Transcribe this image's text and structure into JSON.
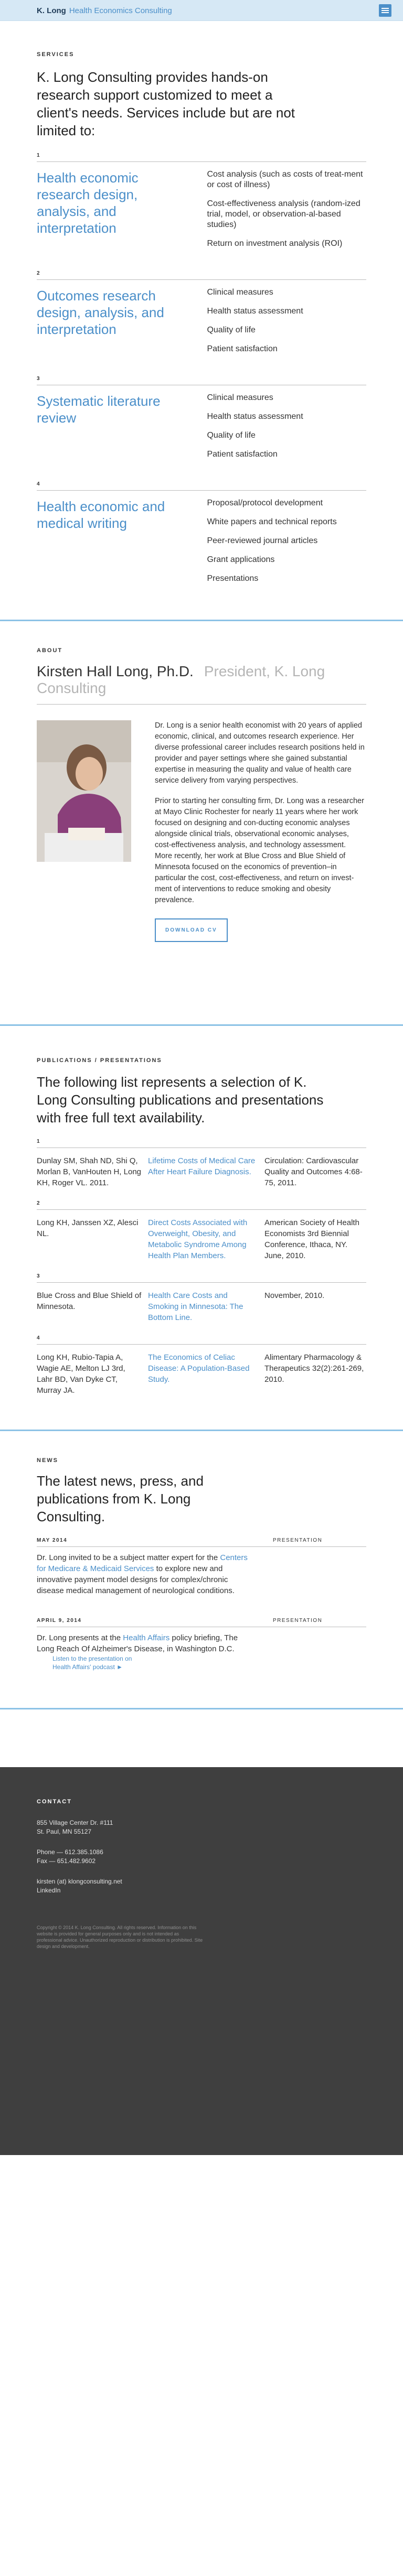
{
  "header": {
    "brand": "K. Long",
    "brand_sub": "Health Economics Consulting"
  },
  "services": {
    "eyebrow": "SERVICES",
    "lead": "K. Long Consulting provides hands-on research support customized to meet a client's needs. Services include but are not limited to:",
    "items": [
      {
        "num": "1",
        "title": "Health economic research design, analysis, and interpretation",
        "points": [
          "Cost analysis (such as costs of treat-ment or cost of illness)",
          "Cost-effectiveness analysis (random-ized trial, model, or observation-al-based studies)",
          "Return on investment analysis (ROI)"
        ]
      },
      {
        "num": "2",
        "title": "Outcomes research design, analysis, and interpretation",
        "points": [
          "Clinical measures",
          "Health status assessment",
          "Quality of life",
          "Patient satisfaction"
        ]
      },
      {
        "num": "3",
        "title": "Systematic literature review",
        "points": [
          "Clinical measures",
          "Health status assessment",
          "Quality of life",
          "Patient satisfaction"
        ]
      },
      {
        "num": "4",
        "title": "Health economic and medical writing",
        "points": [
          "Proposal/protocol development",
          "White papers and technical reports",
          "Peer-reviewed journal articles",
          "Grant applications",
          "Presentations"
        ]
      }
    ]
  },
  "about": {
    "eyebrow": "ABOUT",
    "name": "Kirsten Hall Long, Ph.D.",
    "role": "President, K. Long Consulting",
    "p1": "Dr. Long is a senior health economist with 20 years of applied economic, clinical, and outcomes research experience. Her diverse professional career includes research positions held in provider and payer settings where she gained substantial expertise in measuring the quality and value of health care service delivery from varying perspectives.",
    "p2": "Prior to starting her consulting firm, Dr. Long was a researcher at Mayo Clinic Rochester for nearly 11 years where her work focused on designing and con-ducting economic analyses alongside clinical trials, observational economic analyses, cost-effectiveness analysis, and technology assessment. More recently, her work at Blue Cross and Blue Shield of Minnesota focused on the economics of prevention–in particular the cost, cost-effectiveness, and return on invest-ment of interventions to reduce smoking and obesity prevalence.",
    "button": "DOWNLOAD CV"
  },
  "publications": {
    "eyebrow": "PUBLICATIONS / PRESENTATIONS",
    "lead": "The following list represents a selection of K. Long Consulting publications and presentations with free full text availability.",
    "items": [
      {
        "num": "1",
        "authors": "Dunlay SM, Shah ND, Shi Q, Morlan B, VanHouten H, Long KH, Roger VL. 2011.",
        "title": "Lifetime Costs of Medical Care After Heart Failure Diagnosis.",
        "source": "Circulation: Cardiovascular Quality and Outcomes 4:68-75, 2011."
      },
      {
        "num": "2",
        "authors": "Long KH, Janssen XZ, Alesci NL.",
        "title": "Direct Costs Associated with Overweight, Obesity, and Metabolic Syndrome Among Health Plan Members.",
        "source": "American Society of Health Economists 3rd Biennial Conference, Ithaca, NY. June, 2010."
      },
      {
        "num": "3",
        "authors": "Blue Cross and Blue Shield of Minnesota.",
        "title": "Health Care Costs and Smoking in Minnesota: The Bottom Line.",
        "source": "November, 2010."
      },
      {
        "num": "4",
        "authors": "Long KH, Rubio-Tapia A, Wagie AE, Melton LJ 3rd, Lahr BD, Van Dyke CT, Murray JA.",
        "title": "The Economics of Celiac Disease: A Population-Based Study.",
        "source": "Alimentary Pharmacology & Therapeutics 32(2):261-269, 2010."
      }
    ]
  },
  "news": {
    "eyebrow": "NEWS",
    "lead": "The latest news, press, and publications from K. Long Consulting.",
    "items": [
      {
        "date": "MAY 2014",
        "text_before": "Dr. Long invited to be a subject matter expert for the",
        "link": "Centers for Medicare & Medicaid Services",
        "text_after": "to explore new and innovative payment model designs for complex/chronic disease medical management of neurological conditions.",
        "tag": "PRESENTATION",
        "side": ""
      },
      {
        "date": "APRIL 9, 2014",
        "text_before": "Dr. Long presents at the",
        "link": "Health Affairs",
        "text_after": "policy briefing, The Long Reach Of Alzheimer's Disease, in Washington D.C.",
        "tag": "PRESENTATION",
        "side": "Listen to the presentation on Health Affairs' podcast ►"
      }
    ]
  },
  "footer": {
    "eyebrow": "CONTACT",
    "address1": "855 Village Center Dr. #111",
    "address2": "St. Paul, MN 55127",
    "phone": "Phone — 612.385.1086",
    "fax": "Fax — 651.482.9602",
    "email": "kirsten (at) klongconsulting.net",
    "linkedin": "LinkedIn",
    "legal": "Copyright © 2014 K. Long Consulting. All rights reserved. Information on this website is provided for general purposes only and is not intended as professional advice. Unauthorized reproduction or distribution is prohibited. Site design and development."
  }
}
